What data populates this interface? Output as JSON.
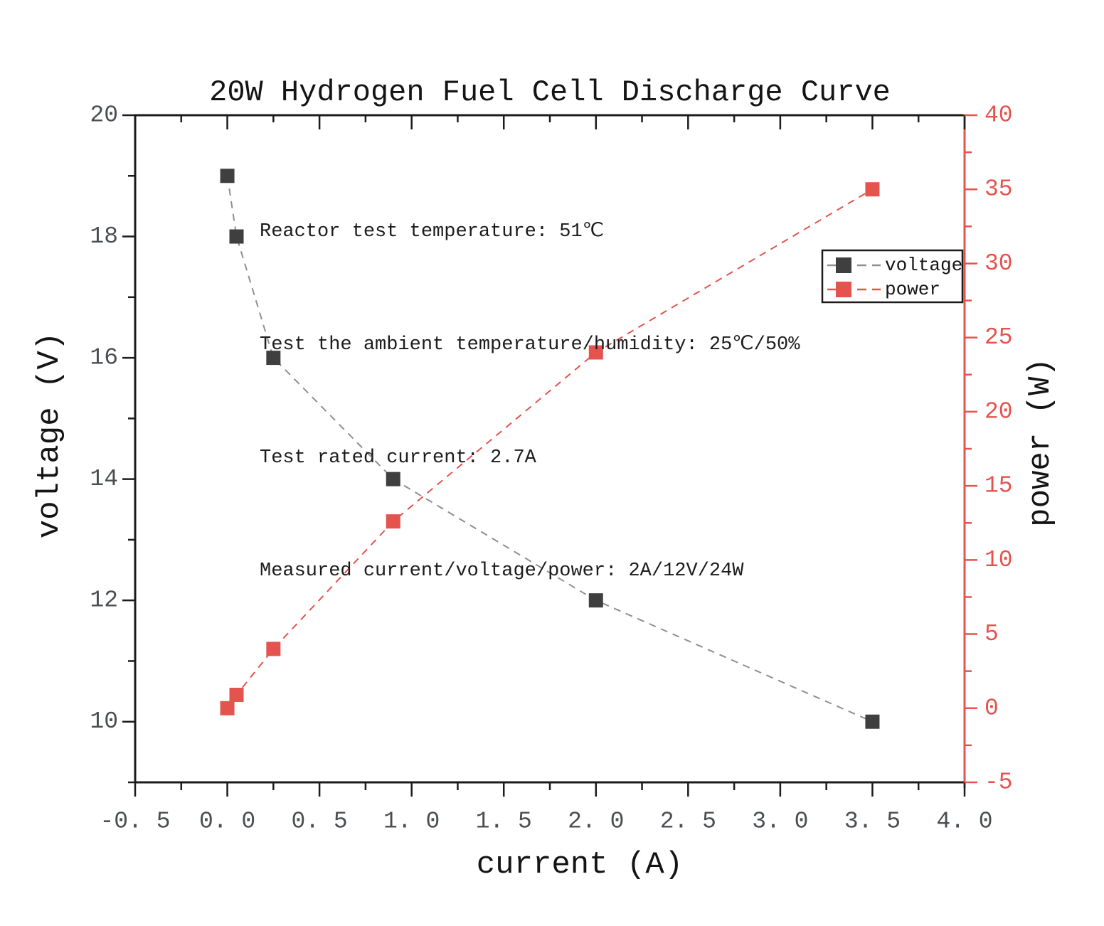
{
  "figure": {
    "title": "20W Hydrogen Fuel Cell Discharge Curve",
    "annotations": [
      "Reactor test temperature: 51℃",
      "Test the ambient temperature/humidity: 25℃/50%",
      "Test rated current: 2.7A",
      "Measured current/voltage/power: 2A/12V/24W"
    ]
  },
  "chart_data": {
    "type": "line",
    "title": "20W Hydrogen Fuel Cell Discharge Curve",
    "x": [
      0,
      0.05,
      0.25,
      0.9,
      2.0,
      3.5
    ],
    "series": [
      {
        "name": "voltage",
        "axis": "left",
        "values": [
          19,
          18,
          16,
          14,
          12,
          10
        ],
        "marker": "square",
        "marker_color": "#3f3f3f",
        "line_color": "#8f8f8f"
      },
      {
        "name": "power",
        "axis": "right",
        "values": [
          0,
          0.9,
          4,
          12.6,
          24,
          35
        ],
        "marker": "square",
        "marker_color": "#e4534e",
        "line_color": "#e4534e"
      }
    ],
    "xlabel": "current (A)",
    "ylabel_left": "voltage (V)",
    "ylabel_right": "power (W)",
    "xlim": [
      -0.5,
      4.0
    ],
    "ylim_left": [
      9,
      20
    ],
    "ylim_right": [
      -5,
      40
    ],
    "x_ticks": {
      "values": [
        -0.5,
        0.0,
        0.5,
        1.0,
        1.5,
        2.0,
        2.5,
        3.0,
        3.5,
        4.0
      ],
      "labels": [
        "-0. 5",
        "0. 0",
        "0. 5",
        "1. 0",
        "1. 5",
        "2. 0",
        "2. 5",
        "3. 0",
        "3. 5",
        "4. 0"
      ],
      "minor_step": 0.25
    },
    "y_left_ticks": {
      "values": [
        10,
        12,
        14,
        16,
        18,
        20
      ],
      "labels": [
        "10",
        "12",
        "14",
        "16",
        "18",
        "20"
      ],
      "minor_step": 1
    },
    "y_right_ticks": {
      "values": [
        -5,
        0,
        5,
        10,
        15,
        20,
        25,
        30,
        35,
        40
      ],
      "labels": [
        "-5",
        "0",
        "5",
        "10",
        "15",
        "20",
        "25",
        "30",
        "35",
        "40"
      ],
      "minor_step": 2.5
    },
    "legend": {
      "entries": [
        "voltage",
        "power"
      ],
      "position": "upper-right-inside"
    },
    "grid": false,
    "colors": {
      "axis_black": "#1b1b1b",
      "axis_red": "#e4534e",
      "tick_label_gray": "#4a4e52",
      "legend_text": "#141414"
    }
  }
}
